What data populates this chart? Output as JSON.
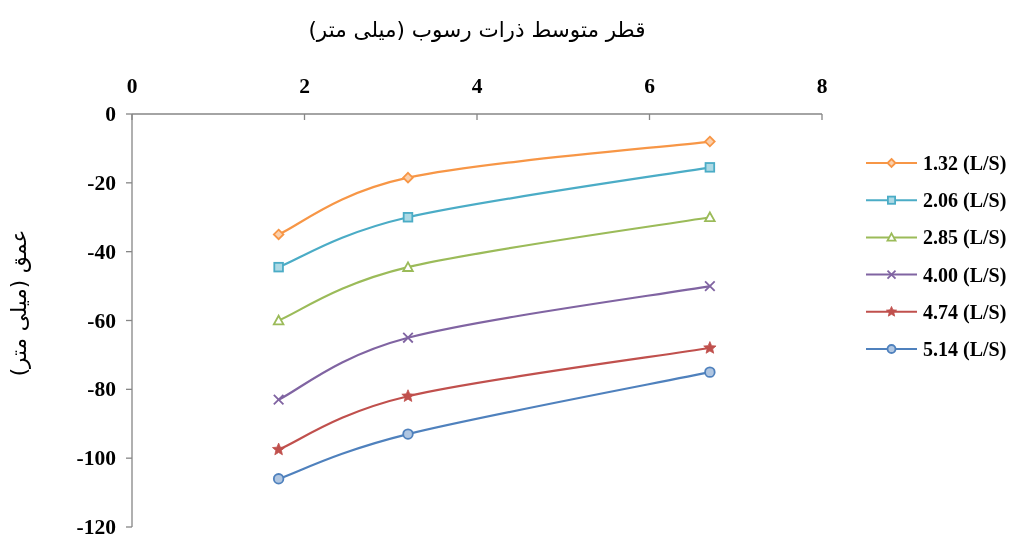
{
  "chart_data": {
    "type": "line",
    "xlabel": "قطر متوسط ذرات رسوب (میلی متر)",
    "ylabel": "عمق (میلی متر)",
    "x": [
      1.7,
      3.2,
      6.7
    ],
    "xlim": [
      0,
      8
    ],
    "xticks": [
      0,
      2,
      4,
      6,
      8
    ],
    "ylim": [
      -120,
      0
    ],
    "yticks": [
      -120,
      -100,
      -80,
      -60,
      -40,
      -20,
      0
    ],
    "legend": "right",
    "series": [
      {
        "name": "1.32 (L/S)",
        "color": "#f79646",
        "marker": "diamond",
        "values": [
          -35,
          -18.5,
          -8
        ]
      },
      {
        "name": "2.06 (L/S)",
        "color": "#4bacc6",
        "marker": "square",
        "values": [
          -44.5,
          -30,
          -15.5
        ]
      },
      {
        "name": "2.85 (L/S)",
        "color": "#9bbb59",
        "marker": "triangle",
        "values": [
          -60,
          -44.5,
          -30
        ]
      },
      {
        "name": "4.00 (L/S)",
        "color": "#8064a2",
        "marker": "cross",
        "values": [
          -83,
          -65,
          -50
        ]
      },
      {
        "name": "4.74 (L/S)",
        "color": "#c0504d",
        "marker": "star",
        "values": [
          -97.5,
          -82,
          -68
        ]
      },
      {
        "name": "5.14 (L/S)",
        "color": "#4f81bd",
        "marker": "circle",
        "values": [
          -106,
          -93,
          -75
        ]
      }
    ]
  }
}
